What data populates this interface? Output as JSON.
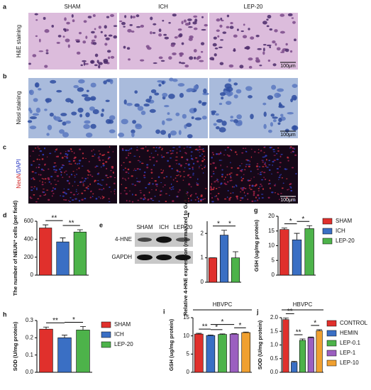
{
  "figure": {
    "letters": [
      "a",
      "b",
      "c",
      "e"
    ],
    "column_labels": [
      "SHAM",
      "ICH",
      "LEP-20"
    ],
    "row_labels": [
      "H&E staining",
      "Nissl staining"
    ],
    "fluor_label": {
      "red": "NeuN",
      "blue": "/DAPI"
    },
    "scale_bar": "100μm",
    "blot": {
      "lanes": [
        "SHAM",
        "ICH",
        "LEP-20"
      ],
      "rows": [
        "4-HNE",
        "GAPDH"
      ]
    }
  },
  "chart_data": [
    {
      "type": "bar",
      "panel": "d",
      "ylabel": "The number of NEUN⁺ cells (per field)",
      "values": [
        525,
        370,
        480
      ],
      "errors": [
        35,
        45,
        25
      ],
      "colors": [
        "#e0302c",
        "#3a6fc4",
        "#4db34a"
      ],
      "ylim": [
        0,
        600
      ],
      "yticks": [
        0,
        200,
        400,
        600
      ],
      "annotations": [
        {
          "text": "**",
          "between": [
            0,
            1
          ]
        },
        {
          "text": "**",
          "between": [
            1,
            2
          ]
        }
      ]
    },
    {
      "type": "bar",
      "panel": "f",
      "ylabel": "Relative 4-HNE expression (normalized to GAPDH)",
      "values": [
        1.0,
        1.93,
        1.0
      ],
      "errors": [
        0,
        0.2,
        0.25
      ],
      "colors": [
        "#e0302c",
        "#3a6fc4",
        "#4db34a"
      ],
      "ylim": [
        0,
        2.5
      ],
      "yticks": [
        0,
        1,
        2
      ],
      "annotations": [
        {
          "text": "*",
          "between": [
            0,
            1
          ]
        },
        {
          "text": "*",
          "between": [
            1,
            2
          ]
        }
      ]
    },
    {
      "type": "bar",
      "panel": "g",
      "ylabel": "GSH (ug/mg protein)",
      "categories": [
        "SHAM",
        "ICH",
        "LEP-20"
      ],
      "values": [
        15.5,
        12,
        15.8
      ],
      "errors": [
        0.5,
        2.2,
        1.0
      ],
      "colors": [
        "#e0302c",
        "#3a6fc4",
        "#4db34a"
      ],
      "ylim": [
        0,
        20
      ],
      "yticks": [
        0,
        5,
        10,
        15,
        20
      ],
      "legend": true,
      "annotations": [
        {
          "text": "*",
          "between": [
            0,
            1
          ]
        },
        {
          "text": "*",
          "between": [
            1,
            2
          ]
        }
      ]
    },
    {
      "type": "bar",
      "panel": "h",
      "ylabel": "SOD (U/mg protein)",
      "categories": [
        "SHAM",
        "ICH",
        "LEP-20"
      ],
      "values": [
        0.25,
        0.2,
        0.245
      ],
      "errors": [
        0.012,
        0.015,
        0.02
      ],
      "colors": [
        "#e0302c",
        "#3a6fc4",
        "#4db34a"
      ],
      "ylim": [
        0,
        0.3
      ],
      "yticks": [
        {
          "value": 0,
          "label": "0.0"
        },
        0.1,
        0.2,
        0.3
      ],
      "legend": true,
      "annotations": [
        {
          "text": "**",
          "between": [
            0,
            1
          ]
        },
        {
          "text": "*",
          "between": [
            1,
            2
          ]
        }
      ]
    },
    {
      "type": "bar",
      "panel": "i",
      "title": "HBVPC",
      "ylabel": "GSH (ug/mg protein)",
      "values": [
        10.5,
        10.1,
        10.4,
        10.5,
        10.9
      ],
      "errors": [
        0.2,
        0.15,
        0.15,
        0.1,
        0.15
      ],
      "colors": [
        "#e0302c",
        "#3a6fc4",
        "#4db34a",
        "#9b5fc0",
        "#f0a030"
      ],
      "ylim": [
        0,
        15
      ],
      "yticks": [
        0,
        5,
        10,
        15
      ],
      "annotations": [
        {
          "text": "**",
          "between": [
            0,
            1
          ]
        },
        {
          "text": "*",
          "between": [
            1,
            2
          ]
        },
        {
          "text": "*",
          "between": [
            1,
            3
          ]
        },
        {
          "text": "*",
          "between": [
            3,
            4
          ]
        }
      ]
    },
    {
      "type": "bar",
      "panel": "j",
      "title": "HBVPC",
      "ylabel": "SOD (U/mg protein)",
      "categories": [
        "CONTROL",
        "HEMIN",
        "LEP-0.1",
        "LEP-1",
        "LEP-10"
      ],
      "values": [
        1.93,
        0.37,
        1.17,
        1.27,
        1.52
      ],
      "errors": [
        0.06,
        0.03,
        0.05,
        0.02,
        0.04
      ],
      "colors": [
        "#e0302c",
        "#3a6fc4",
        "#4db34a",
        "#9b5fc0",
        "#f0a030"
      ],
      "ylim": [
        0,
        2.0
      ],
      "yticks": [
        {
          "value": 0,
          "label": "0.0"
        },
        0.5,
        {
          "value": 1,
          "label": "1.0"
        },
        1.5,
        {
          "value": 2,
          "label": "2.0"
        }
      ],
      "legend": true,
      "annotations": [
        {
          "text": "**",
          "between": [
            0,
            1
          ]
        },
        {
          "text": "**",
          "between": [
            1,
            2
          ]
        },
        {
          "text": "*",
          "between": [
            3,
            4
          ]
        }
      ]
    }
  ]
}
